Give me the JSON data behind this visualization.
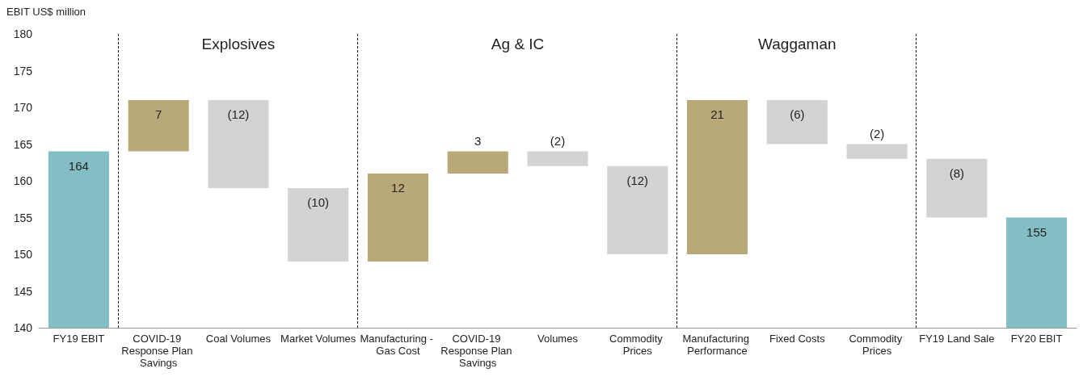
{
  "chart_data": {
    "type": "bar",
    "ylabel": "EBIT US$ million",
    "categories": [
      "FY19 EBIT",
      "COVID-19 Response Plan Savings",
      "Coal Volumes",
      "Market Volumes",
      "Manufacturing - Gas Cost",
      "COVID-19 Response Plan Savings",
      "Volumes",
      "Commodity Prices",
      "Manufacturing Performance",
      "Fixed Costs",
      "Commodity Prices",
      "FY19 Land Sale",
      "FY20 EBIT"
    ],
    "base": [
      140,
      164,
      171,
      159,
      149,
      161,
      164,
      162,
      150,
      171,
      165,
      163,
      140
    ],
    "values": [
      24,
      7,
      -12,
      -10,
      12,
      3,
      -2,
      -12,
      21,
      -6,
      -2,
      -8,
      15
    ],
    "value_labels": [
      "164",
      "7",
      "(12)",
      "(10)",
      "12",
      "3",
      "(2)",
      "(12)",
      "21",
      "(6)",
      "(2)",
      "(8)",
      "155"
    ],
    "colors": [
      "#82bec4",
      "#b9a878",
      "#d3d3d3",
      "#d3d3d3",
      "#b9a878",
      "#b9a878",
      "#d3d3d3",
      "#d3d3d3",
      "#b9a878",
      "#d3d3d3",
      "#d3d3d3",
      "#d3d3d3",
      "#82bec4"
    ],
    "ylim": [
      140,
      180
    ],
    "yticks": [
      140,
      145,
      150,
      155,
      160,
      165,
      170,
      175,
      180
    ],
    "annotations": [
      "Explosives",
      "Ag & IC",
      "Waggaman"
    ],
    "grid": false
  }
}
